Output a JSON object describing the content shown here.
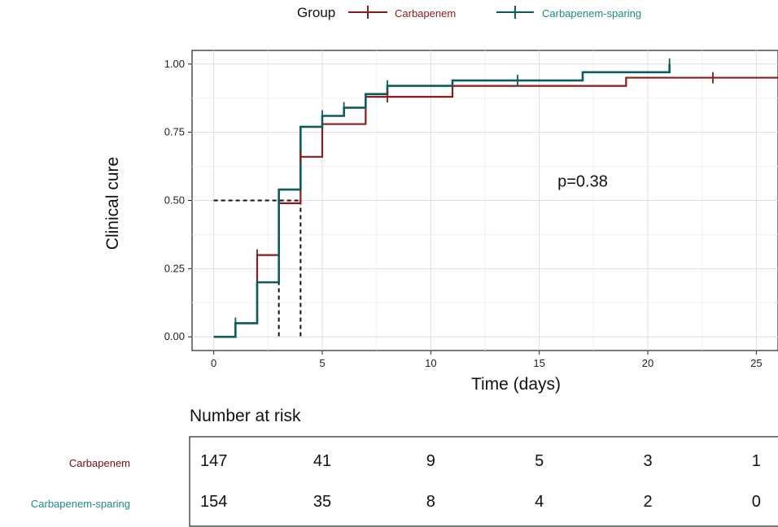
{
  "chart_data": {
    "type": "line",
    "subtype": "kaplan-meier step curve",
    "legend": {
      "title": "Group",
      "placement": "top",
      "entries": [
        "Carbapenem",
        "Carbapenem-sparing"
      ]
    },
    "xlabel": "Time (days)",
    "ylabel": "Clinical cure",
    "xlim": [
      -1,
      26
    ],
    "ylim": [
      -0.05,
      1.05
    ],
    "x_ticks": [
      0,
      5,
      10,
      15,
      20,
      25
    ],
    "y_ticks": [
      0.0,
      0.25,
      0.5,
      0.75,
      1.0
    ],
    "y_tick_labels": [
      "0.00",
      "0.25",
      "0.50",
      "0.75",
      "1.00"
    ],
    "grid": true,
    "annotation": "p=0.38",
    "annotation_position": [
      17,
      0.55
    ],
    "median_line": {
      "y": 0.5,
      "x_values": [
        3,
        4
      ]
    },
    "colors": {
      "Carbapenem": "#8b1a1a",
      "Carbapenem-sparing": "#0d5c5c"
    },
    "series": [
      {
        "name": "Carbapenem",
        "steps": [
          [
            0,
            0.0
          ],
          [
            1,
            0.05
          ],
          [
            2,
            0.3
          ],
          [
            3,
            0.49
          ],
          [
            4,
            0.66
          ],
          [
            5,
            0.78
          ],
          [
            7,
            0.88
          ],
          [
            11,
            0.92
          ],
          [
            19,
            0.95
          ]
        ],
        "end_x": 26,
        "censor_marks": [
          [
            2,
            0.3
          ],
          [
            4,
            0.66
          ],
          [
            8,
            0.88
          ],
          [
            23,
            0.95
          ]
        ]
      },
      {
        "name": "Carbapenem-sparing",
        "steps": [
          [
            0,
            0.0
          ],
          [
            1,
            0.05
          ],
          [
            2,
            0.2
          ],
          [
            3,
            0.54
          ],
          [
            4,
            0.77
          ],
          [
            5,
            0.81
          ],
          [
            6,
            0.84
          ],
          [
            7,
            0.89
          ],
          [
            8,
            0.92
          ],
          [
            11,
            0.94
          ],
          [
            17,
            0.97
          ],
          [
            21,
            1.0
          ]
        ],
        "end_x": 21,
        "censor_marks": [
          [
            1,
            0.05
          ],
          [
            5,
            0.81
          ],
          [
            6,
            0.84
          ],
          [
            8,
            0.92
          ],
          [
            14,
            0.94
          ],
          [
            21,
            1.0
          ]
        ]
      }
    ],
    "risk_table": {
      "title": "Number at risk",
      "times": [
        0,
        5,
        10,
        15,
        20,
        25
      ],
      "rows": [
        {
          "label": "Carbapenem",
          "values": [
            "147",
            "41",
            "9",
            "5",
            "3",
            "1"
          ]
        },
        {
          "label": "Carbapenem-sparing",
          "values": [
            "154",
            "35",
            "8",
            "4",
            "2",
            "0"
          ]
        }
      ]
    }
  }
}
